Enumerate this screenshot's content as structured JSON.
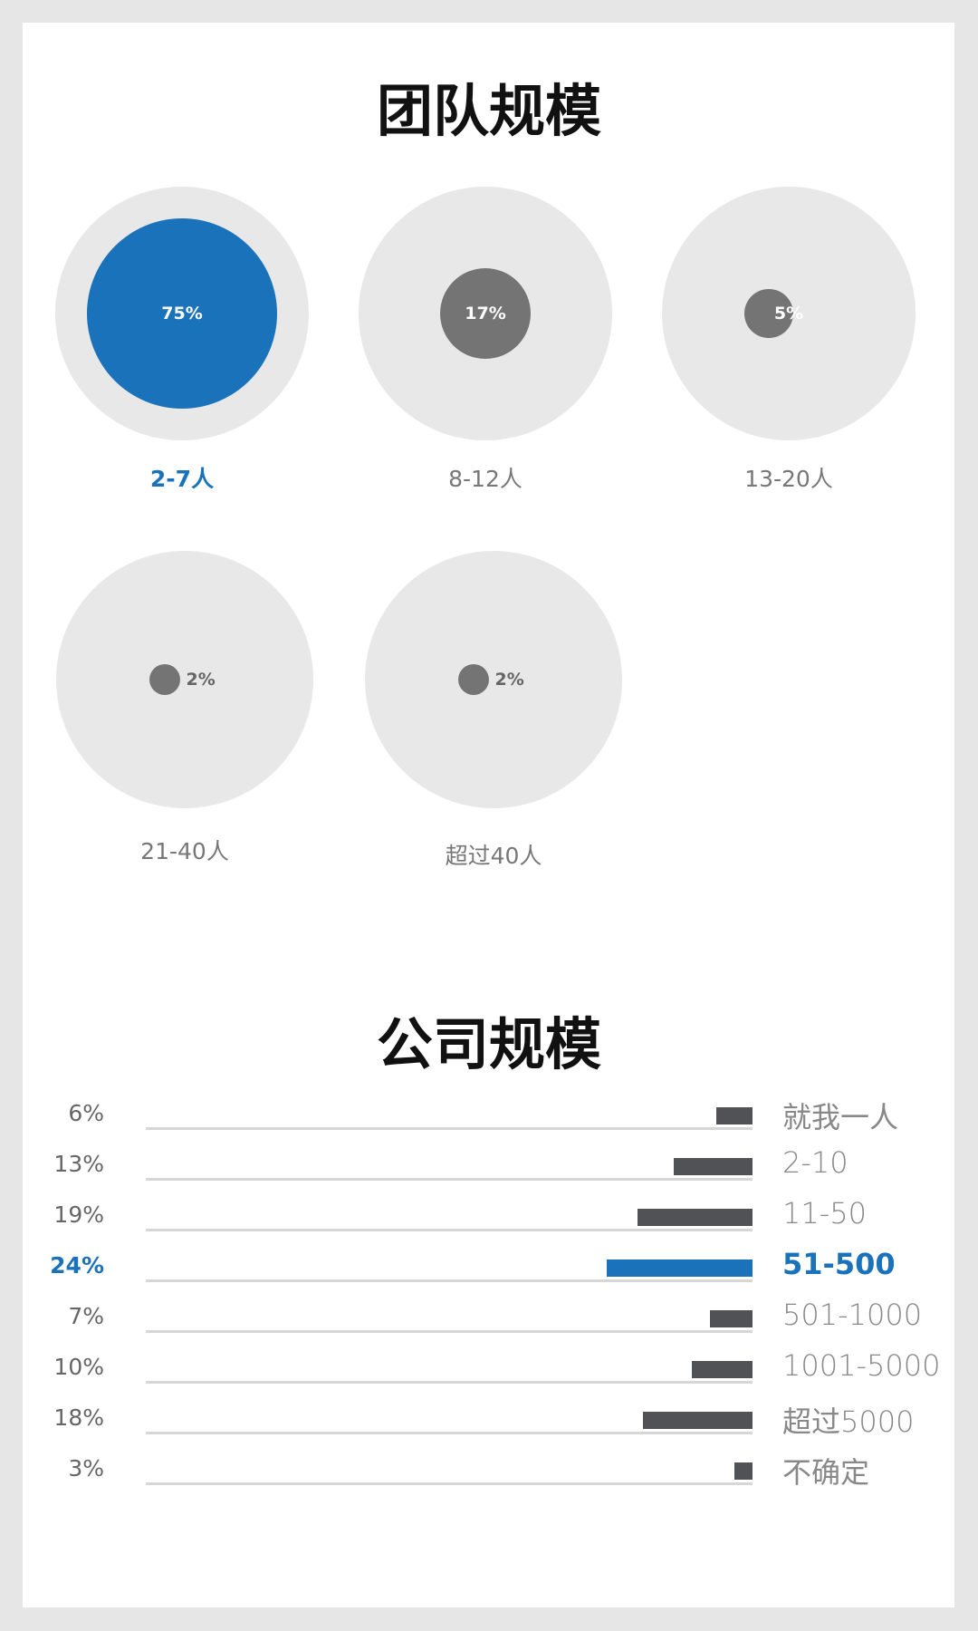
{
  "chart_data": [
    {
      "type": "bubble",
      "title": "团队规模",
      "highlight_color": "#1a72bb",
      "muted_color": "#747474",
      "categories": [
        "2-7人",
        "8-12人",
        "13-20人",
        "21-40人",
        "超过40人"
      ],
      "values": [
        75,
        17,
        5,
        2,
        2
      ],
      "labels": [
        "75%",
        "17%",
        "5%",
        "2%",
        "2%"
      ],
      "highlight_index": 0
    },
    {
      "type": "bar",
      "orientation": "horizontal",
      "title": "公司规模",
      "highlight_color": "#1a72bb",
      "bar_color": "#515256",
      "categories": [
        "就我一人",
        "2-10",
        "11-50",
        "51-500",
        "501-1000",
        "1001-5000",
        "超过5000",
        "不确定"
      ],
      "values": [
        6,
        13,
        19,
        24,
        7,
        10,
        18,
        3
      ],
      "labels": [
        "6%",
        "13%",
        "19%",
        "24%",
        "7%",
        "10%",
        "18%",
        "3%"
      ],
      "highlight_index": 3
    }
  ]
}
